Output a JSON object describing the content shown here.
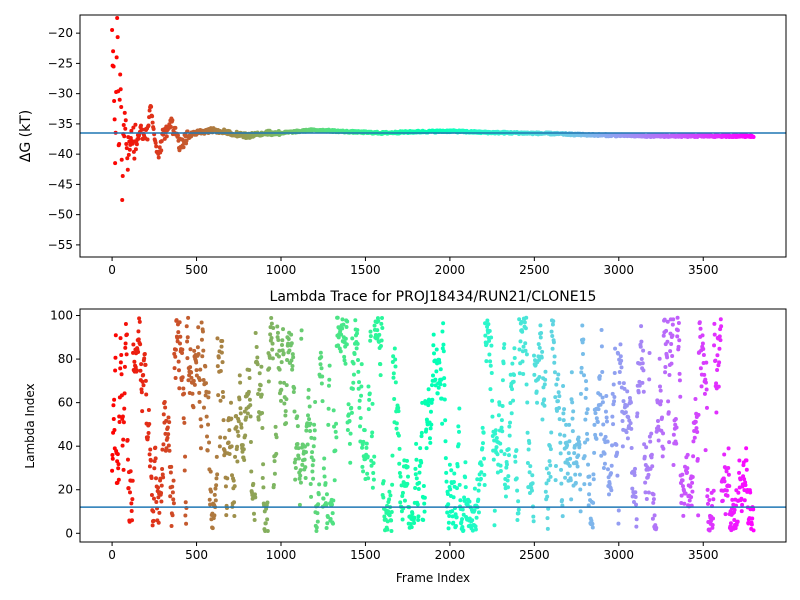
{
  "chart_data": [
    {
      "type": "scatter",
      "title": "",
      "xlabel": "",
      "ylabel": "ΔG (kT)",
      "xlim": [
        -190,
        3990
      ],
      "ylim": [
        -57,
        -17
      ],
      "xticks": [
        0,
        500,
        1000,
        1500,
        2000,
        2500,
        3000,
        3500
      ],
      "yticks": [
        -20,
        -25,
        -30,
        -35,
        -40,
        -45,
        -50,
        -55
      ],
      "reference_line": -36.5,
      "reference_color": "#1f77b4",
      "colormap": "rainbow (red at frame 0 to violet at last frame)",
      "grid": false,
      "frames": 3800,
      "series": [
        {
          "x": [
            0,
            10,
            20,
            30,
            40,
            50,
            60,
            70,
            80,
            90,
            100,
            110,
            120,
            130,
            150,
            170,
            190,
            210,
            230,
            250,
            280,
            300,
            350,
            400,
            450,
            500,
            600,
            700,
            800,
            900,
            1000,
            1200,
            1400,
            1600,
            1800,
            2000,
            2200,
            2400,
            2600,
            2800,
            3000,
            3200,
            3400,
            3600,
            3790
          ],
          "y": [
            -20,
            -30,
            -42,
            -17,
            -38,
            -27,
            -46,
            -33,
            -36,
            -40,
            -37,
            -39,
            -35,
            -38,
            -37,
            -36,
            -37,
            -36.5,
            -32,
            -38,
            -40,
            -37,
            -35,
            -38.5,
            -37,
            -36.5,
            -36,
            -36.5,
            -37,
            -36.5,
            -36.5,
            -36,
            -36.3,
            -36.5,
            -36.3,
            -36.2,
            -36.4,
            -36.5,
            -36.6,
            -36.8,
            -36.9,
            -37,
            -37,
            -37,
            -37
          ]
        }
      ]
    },
    {
      "type": "scatter",
      "title": "Lambda Trace for PROJ18434/RUN21/CLONE15",
      "xlabel": "Frame Index",
      "ylabel": "Lambda Index",
      "xlim": [
        -190,
        3990
      ],
      "ylim": [
        -4,
        103
      ],
      "xticks": [
        0,
        500,
        1000,
        1500,
        2000,
        2500,
        3000,
        3500
      ],
      "yticks": [
        0,
        20,
        40,
        60,
        80,
        100
      ],
      "reference_line": 12,
      "reference_color": "#1f77b4",
      "colormap": "rainbow (red at frame 0 to violet at last frame)",
      "grid": false,
      "frames": 3800,
      "lambda_range": [
        1,
        99
      ]
    }
  ]
}
